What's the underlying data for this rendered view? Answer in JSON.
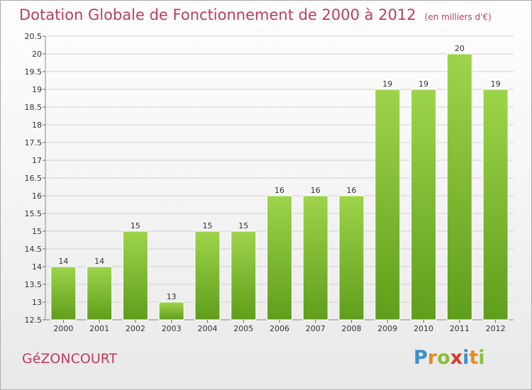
{
  "header": {
    "title": "Dotation Globale de Fonctionnement de 2000 à 2012",
    "unit": "(en milliers d'€)"
  },
  "commune": "GéZONCOURT",
  "logo": {
    "text": "Proxiti",
    "letters": [
      {
        "ch": "P",
        "color": "#3a8fd1"
      },
      {
        "ch": "r",
        "color": "#e98a1c"
      },
      {
        "ch": "o",
        "color": "#8cbd3a"
      },
      {
        "ch": "x",
        "color": "#d8392b"
      },
      {
        "ch": "i",
        "color": "#3a8fd1"
      },
      {
        "ch": "t",
        "color": "#e98a1c"
      },
      {
        "ch": "i",
        "color": "#8cbd3a"
      }
    ]
  },
  "colors": {
    "title": "#bf3c5a",
    "bar_top": "#9ed44b",
    "bar_bottom": "#5f9e1b",
    "grid": "#d0d0d0"
  },
  "chart_data": {
    "type": "bar",
    "title": "Dotation Globale de Fonctionnement de 2000 à 2012",
    "categories": [
      "2000",
      "2001",
      "2002",
      "2003",
      "2004",
      "2005",
      "2006",
      "2007",
      "2008",
      "2009",
      "2010",
      "2011",
      "2012"
    ],
    "values": [
      14,
      14,
      15,
      13,
      15,
      15,
      16,
      16,
      16,
      19,
      19,
      20,
      19
    ],
    "value_labels": [
      "14",
      "14",
      "15",
      "13",
      "15",
      "15",
      "16",
      "16",
      "16",
      "19",
      "19",
      "20",
      "19"
    ],
    "ylim": [
      12.5,
      20.5
    ],
    "yticks": [
      "12.5",
      "13",
      "13.5",
      "14",
      "14.5",
      "15",
      "15.5",
      "16",
      "16.5",
      "17",
      "17.5",
      "18",
      "18.5",
      "19",
      "19.5",
      "20",
      "20.5"
    ],
    "grid": true,
    "xlabel": "",
    "ylabel": ""
  }
}
